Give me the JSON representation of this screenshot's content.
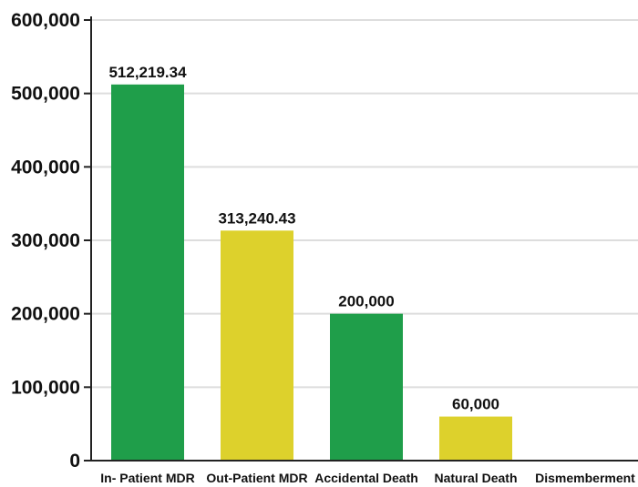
{
  "chart_data": {
    "type": "bar",
    "categories": [
      "In- Patient MDR",
      "Out-Patient MDR",
      "Accidental Death",
      "Natural Death",
      "Dismemberment"
    ],
    "values": [
      512219.34,
      313240.43,
      200000,
      60000,
      0
    ],
    "data_labels": [
      "512,219.34",
      "313,240.43",
      "200,000",
      "60,000",
      ""
    ],
    "bar_colors": [
      "#1f9e4a",
      "#ddd12c",
      "#1f9e4a",
      "#ddd12c",
      "#1f9e4a"
    ],
    "y_ticks": [
      0,
      100000,
      200000,
      300000,
      400000,
      500000,
      600000
    ],
    "y_tick_labels": [
      "0",
      "100,000",
      "200,000",
      "300,000",
      "400,000",
      "500,000",
      "600,000"
    ],
    "ylim": [
      0,
      600000
    ],
    "grid": true,
    "title": "",
    "xlabel": "",
    "ylabel": ""
  }
}
